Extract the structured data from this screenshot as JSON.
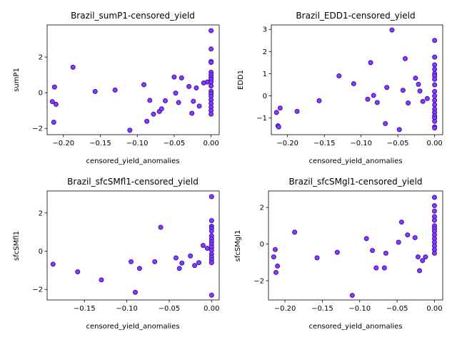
{
  "marker": {
    "fill": "#9b30ff",
    "edge": "#1f1fa8"
  },
  "chart_data": [
    {
      "type": "scatter",
      "title": "Brazil_sumP1-censored_yield",
      "xlabel": "censored_yield_anomalies",
      "ylabel": "sumP1",
      "xlim": [
        -0.222,
        0.011
      ],
      "ylim": [
        -2.35,
        3.8
      ],
      "xticks": [
        -0.2,
        -0.15,
        -0.1,
        -0.05,
        0.0
      ],
      "xtick_labels": [
        "−0.20",
        "−0.15",
        "−0.10",
        "−0.05",
        "0.00"
      ],
      "yticks": [
        -2,
        0,
        2
      ],
      "ytick_labels": [
        "−2",
        "0",
        "2"
      ],
      "points": [
        [
          -0.215,
          -0.5
        ],
        [
          -0.213,
          -1.65
        ],
        [
          -0.212,
          0.32
        ],
        [
          -0.21,
          -0.65
        ],
        [
          -0.187,
          1.43
        ],
        [
          -0.157,
          0.07
        ],
        [
          -0.13,
          0.15
        ],
        [
          -0.11,
          -2.1
        ],
        [
          -0.091,
          0.45
        ],
        [
          -0.087,
          -1.6
        ],
        [
          -0.083,
          -0.43
        ],
        [
          -0.078,
          -1.2
        ],
        [
          -0.07,
          -1.05
        ],
        [
          -0.067,
          -0.9
        ],
        [
          -0.062,
          -0.45
        ],
        [
          -0.05,
          0.88
        ],
        [
          -0.048,
          -0.02
        ],
        [
          -0.044,
          -0.55
        ],
        [
          -0.04,
          0.83
        ],
        [
          -0.03,
          0.35
        ],
        [
          -0.026,
          -1.15
        ],
        [
          -0.024,
          -0.48
        ],
        [
          -0.02,
          0.27
        ],
        [
          -0.016,
          -0.75
        ],
        [
          -0.01,
          0.55
        ],
        [
          -0.005,
          0.6
        ],
        [
          0.0,
          3.48
        ],
        [
          0.0,
          2.45
        ],
        [
          0.0,
          1.75
        ],
        [
          0.0,
          1.7
        ],
        [
          0.0,
          1.15
        ],
        [
          0.0,
          1.0
        ],
        [
          0.0,
          0.85
        ],
        [
          0.0,
          0.75
        ],
        [
          0.0,
          0.6
        ],
        [
          0.0,
          0.38
        ],
        [
          0.0,
          0.08
        ],
        [
          0.0,
          -0.05
        ],
        [
          0.0,
          -0.2
        ],
        [
          0.0,
          -0.4
        ],
        [
          0.0,
          -0.6
        ],
        [
          0.0,
          -0.8
        ],
        [
          0.0,
          -1.0
        ],
        [
          0.0,
          -1.2
        ]
      ]
    },
    {
      "type": "scatter",
      "title": "Brazil_EDD1-censored_yield",
      "xlabel": "censored_yield_anomalies",
      "ylabel": "EDD1",
      "xlim": [
        -0.222,
        0.011
      ],
      "ylim": [
        -1.75,
        3.2
      ],
      "xticks": [
        -0.2,
        -0.15,
        -0.1,
        -0.05,
        0.0
      ],
      "xtick_labels": [
        "−0.20",
        "−0.15",
        "−0.10",
        "−0.05",
        "0.00"
      ],
      "yticks": [
        -1,
        0,
        1,
        2,
        3
      ],
      "ytick_labels": [
        "−1",
        "0",
        "1",
        "2",
        "3"
      ],
      "points": [
        [
          -0.215,
          -0.75
        ],
        [
          -0.213,
          -1.35
        ],
        [
          -0.212,
          -1.4
        ],
        [
          -0.21,
          -0.55
        ],
        [
          -0.187,
          -0.7
        ],
        [
          -0.157,
          -0.22
        ],
        [
          -0.13,
          0.9
        ],
        [
          -0.11,
          0.55
        ],
        [
          -0.091,
          -0.15
        ],
        [
          -0.087,
          1.5
        ],
        [
          -0.083,
          0.02
        ],
        [
          -0.078,
          -0.3
        ],
        [
          -0.067,
          -1.25
        ],
        [
          -0.065,
          0.38
        ],
        [
          -0.058,
          2.97
        ],
        [
          -0.048,
          -1.52
        ],
        [
          -0.043,
          0.25
        ],
        [
          -0.04,
          1.68
        ],
        [
          -0.036,
          -0.32
        ],
        [
          -0.026,
          0.8
        ],
        [
          -0.022,
          0.52
        ],
        [
          -0.02,
          0.22
        ],
        [
          -0.016,
          -0.25
        ],
        [
          -0.01,
          -0.12
        ],
        [
          0.0,
          2.5
        ],
        [
          0.0,
          1.75
        ],
        [
          0.0,
          1.4
        ],
        [
          0.0,
          1.2
        ],
        [
          0.0,
          1.0
        ],
        [
          0.0,
          0.9
        ],
        [
          0.0,
          0.75
        ],
        [
          0.0,
          0.5
        ],
        [
          0.0,
          0.2
        ],
        [
          0.0,
          0.0
        ],
        [
          0.0,
          -0.2
        ],
        [
          0.0,
          -0.4
        ],
        [
          0.0,
          -0.6
        ],
        [
          0.0,
          -0.75
        ],
        [
          0.0,
          -0.9
        ],
        [
          0.0,
          -1.0
        ],
        [
          0.0,
          -1.15
        ],
        [
          0.0,
          -1.4
        ],
        [
          0.0,
          -1.45
        ]
      ]
    },
    {
      "type": "scatter",
      "title": "Brazil_sfcSMfl1-censored_yield",
      "xlabel": "censored_yield_anomalies",
      "ylabel": "sfcSMfl1",
      "xlim": [
        -0.194,
        0.009
      ],
      "ylim": [
        -2.55,
        3.15
      ],
      "xticks": [
        -0.15,
        -0.1,
        -0.05,
        0.0
      ],
      "xtick_labels": [
        "−0.15",
        "−0.10",
        "−0.05",
        "0.00"
      ],
      "yticks": [
        -2,
        0,
        2
      ],
      "ytick_labels": [
        "−2",
        "0",
        "2"
      ],
      "points": [
        [
          -0.187,
          -0.68
        ],
        [
          -0.158,
          -1.08
        ],
        [
          -0.13,
          -1.5
        ],
        [
          -0.095,
          -0.55
        ],
        [
          -0.09,
          -2.15
        ],
        [
          -0.085,
          -0.9
        ],
        [
          -0.067,
          -0.55
        ],
        [
          -0.06,
          1.25
        ],
        [
          -0.042,
          -0.35
        ],
        [
          -0.038,
          -0.9
        ],
        [
          -0.035,
          -0.62
        ],
        [
          -0.025,
          -0.25
        ],
        [
          -0.02,
          -0.75
        ],
        [
          -0.015,
          -0.6
        ],
        [
          -0.01,
          0.3
        ],
        [
          -0.005,
          0.15
        ],
        [
          0.0,
          2.85
        ],
        [
          0.0,
          1.6
        ],
        [
          0.0,
          1.3
        ],
        [
          0.0,
          1.2
        ],
        [
          0.0,
          1.05
        ],
        [
          0.0,
          0.8
        ],
        [
          0.0,
          0.65
        ],
        [
          0.0,
          0.5
        ],
        [
          0.0,
          0.35
        ],
        [
          0.0,
          0.2
        ],
        [
          0.0,
          0.05
        ],
        [
          0.0,
          -0.15
        ],
        [
          0.0,
          -0.3
        ],
        [
          0.0,
          -0.45
        ],
        [
          0.0,
          -0.6
        ],
        [
          0.0,
          -2.3
        ]
      ]
    },
    {
      "type": "scatter",
      "title": "Brazil_sfcSMgl1-censored_yield",
      "xlabel": "censored_yield_anomalies",
      "ylabel": "sfcSMgl1",
      "xlim": [
        -0.222,
        0.011
      ],
      "ylim": [
        -3.05,
        2.9
      ],
      "xticks": [
        -0.2,
        -0.15,
        -0.1,
        -0.05,
        0.0
      ],
      "xtick_labels": [
        "−0.20",
        "−0.15",
        "−0.10",
        "−0.05",
        "0.00"
      ],
      "yticks": [
        -2,
        0,
        2
      ],
      "ytick_labels": [
        "−2",
        "0",
        "2"
      ],
      "points": [
        [
          -0.215,
          -0.7
        ],
        [
          -0.213,
          -0.3
        ],
        [
          -0.212,
          -1.55
        ],
        [
          -0.21,
          -1.2
        ],
        [
          -0.187,
          0.65
        ],
        [
          -0.157,
          -0.75
        ],
        [
          -0.13,
          -0.45
        ],
        [
          -0.11,
          -2.8
        ],
        [
          -0.091,
          0.3
        ],
        [
          -0.083,
          -0.35
        ],
        [
          -0.078,
          -1.3
        ],
        [
          -0.067,
          -1.3
        ],
        [
          -0.065,
          -0.5
        ],
        [
          -0.048,
          0.1
        ],
        [
          -0.044,
          1.2
        ],
        [
          -0.036,
          0.5
        ],
        [
          -0.026,
          0.35
        ],
        [
          -0.022,
          -0.7
        ],
        [
          -0.02,
          -1.45
        ],
        [
          -0.016,
          -0.9
        ],
        [
          -0.012,
          -0.7
        ],
        [
          0.0,
          2.55
        ],
        [
          0.0,
          2.1
        ],
        [
          0.0,
          1.8
        ],
        [
          0.0,
          1.5
        ],
        [
          0.0,
          1.3
        ],
        [
          0.0,
          1.0
        ],
        [
          0.0,
          0.85
        ],
        [
          0.0,
          0.7
        ],
        [
          0.0,
          0.5
        ],
        [
          0.0,
          0.3
        ],
        [
          0.0,
          0.1
        ],
        [
          0.0,
          -0.1
        ],
        [
          0.0,
          -0.3
        ],
        [
          0.0,
          -0.5
        ]
      ]
    }
  ]
}
